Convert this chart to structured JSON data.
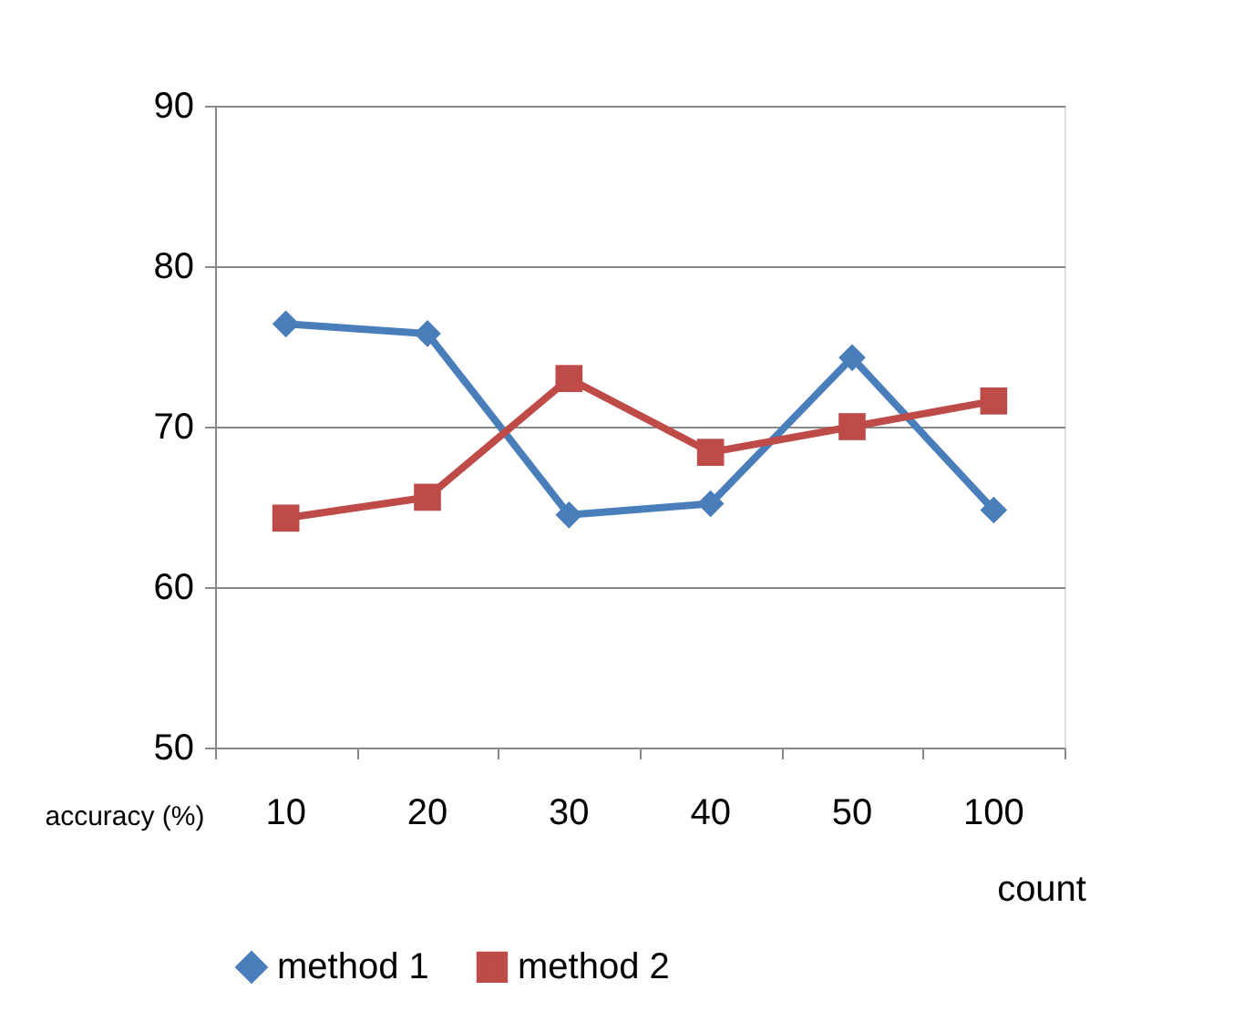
{
  "chart_data": {
    "type": "line",
    "categories": [
      "10",
      "20",
      "30",
      "40",
      "50",
      "100"
    ],
    "xlabel": "count",
    "ylabel": "accuracy (%)",
    "ylim": [
      50,
      90
    ],
    "yticks": [
      50,
      60,
      70,
      80,
      90
    ],
    "grid": "y",
    "legend": "bottom",
    "series": [
      {
        "name": "method 1",
        "color": "#4a7ebb",
        "marker": "diamond",
        "values": [
          76.4,
          75.8,
          64.5,
          65.2,
          74.3,
          64.8
        ]
      },
      {
        "name": "method 2",
        "color": "#be4b48",
        "marker": "square",
        "values": [
          64.3,
          65.6,
          73.0,
          68.4,
          70.0,
          71.6
        ]
      }
    ]
  }
}
